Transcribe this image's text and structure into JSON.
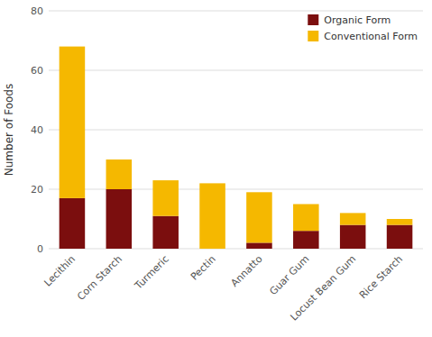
{
  "chart_data": {
    "type": "bar",
    "stacked": true,
    "categories": [
      "Lecithin",
      "Corn Starch",
      "Turmeric",
      "Pectin",
      "Annatto",
      "Guar Gum",
      "Locust Bean Gum",
      "Rice Starch"
    ],
    "series": [
      {
        "name": "Organic Form",
        "color": "#7b0e0e",
        "values": [
          17,
          20,
          11,
          0,
          2,
          6,
          8,
          8
        ]
      },
      {
        "name": "Conventional Form",
        "color": "#f5b800",
        "values": [
          51,
          10,
          12,
          22,
          17,
          9,
          4,
          2
        ]
      }
    ],
    "ylabel": "Number of Foods",
    "ylim": [
      0,
      80
    ],
    "yticks": [
      0,
      20,
      40,
      60,
      80
    ],
    "grid": true,
    "legend": "upper right"
  }
}
